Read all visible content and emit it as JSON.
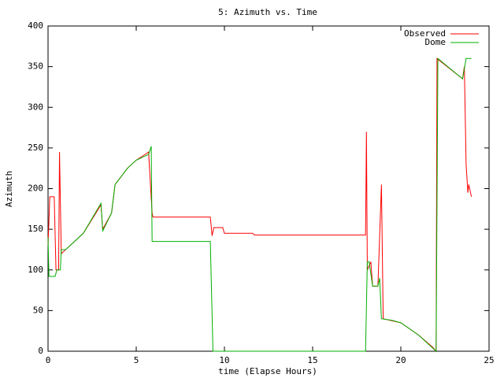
{
  "chart_data": {
    "type": "line",
    "title": "5: Azimuth vs. Time",
    "x_label": "time (Elapse Hours)",
    "y_label": "Azimuth",
    "xlim": [
      0,
      25
    ],
    "xticks": [
      0,
      5,
      10,
      15,
      20,
      25
    ],
    "ylim": [
      0,
      400
    ],
    "yticks": [
      0,
      50,
      100,
      150,
      200,
      250,
      300,
      350,
      400
    ],
    "legend": "top-right",
    "series": [
      {
        "name": "Observed",
        "color": "#ff0000",
        "x": [
          0,
          0.1,
          0.35,
          0.45,
          0.6,
          0.65,
          0.75,
          1.0,
          2.0,
          3.0,
          3.1,
          3.6,
          3.8,
          4.5,
          5.0,
          5.5,
          5.7,
          5.9,
          5.95,
          9.2,
          9.3,
          9.4,
          9.9,
          10.0,
          11.6,
          11.7,
          18.0,
          18.05,
          18.1,
          18.3,
          18.4,
          18.7,
          18.9,
          19.0,
          20.0,
          21.0,
          21.8,
          22.0,
          22.05,
          23.5,
          23.6,
          23.7,
          23.8,
          23.85,
          24.0
        ],
        "values": [
          130,
          190,
          190,
          100,
          100,
          245,
          120,
          125,
          145,
          180,
          150,
          170,
          205,
          225,
          235,
          242,
          245,
          170,
          165,
          165,
          142,
          152,
          152,
          145,
          145,
          143,
          143,
          270,
          100,
          110,
          80,
          80,
          205,
          40,
          35,
          20,
          5,
          0,
          360,
          335,
          350,
          230,
          195,
          205,
          190
        ]
      },
      {
        "name": "Dome",
        "color": "#00b000",
        "x": [
          0,
          0.05,
          0.4,
          0.5,
          0.7,
          0.75,
          1.0,
          2.0,
          3.0,
          3.1,
          3.6,
          3.8,
          4.5,
          5.0,
          5.5,
          5.7,
          5.85,
          5.9,
          9.2,
          9.35,
          18.0,
          18.1,
          18.2,
          18.4,
          18.7,
          18.8,
          18.9,
          19.5,
          20.0,
          21.0,
          22.0,
          22.1,
          23.5,
          23.7,
          24.0
        ],
        "values": [
          140,
          92,
          92,
          100,
          100,
          125,
          125,
          145,
          182,
          148,
          170,
          205,
          225,
          235,
          240,
          242,
          252,
          135,
          135,
          0,
          0,
          110,
          110,
          80,
          80,
          90,
          40,
          38,
          35,
          20,
          0,
          360,
          335,
          360,
          360
        ]
      }
    ]
  }
}
